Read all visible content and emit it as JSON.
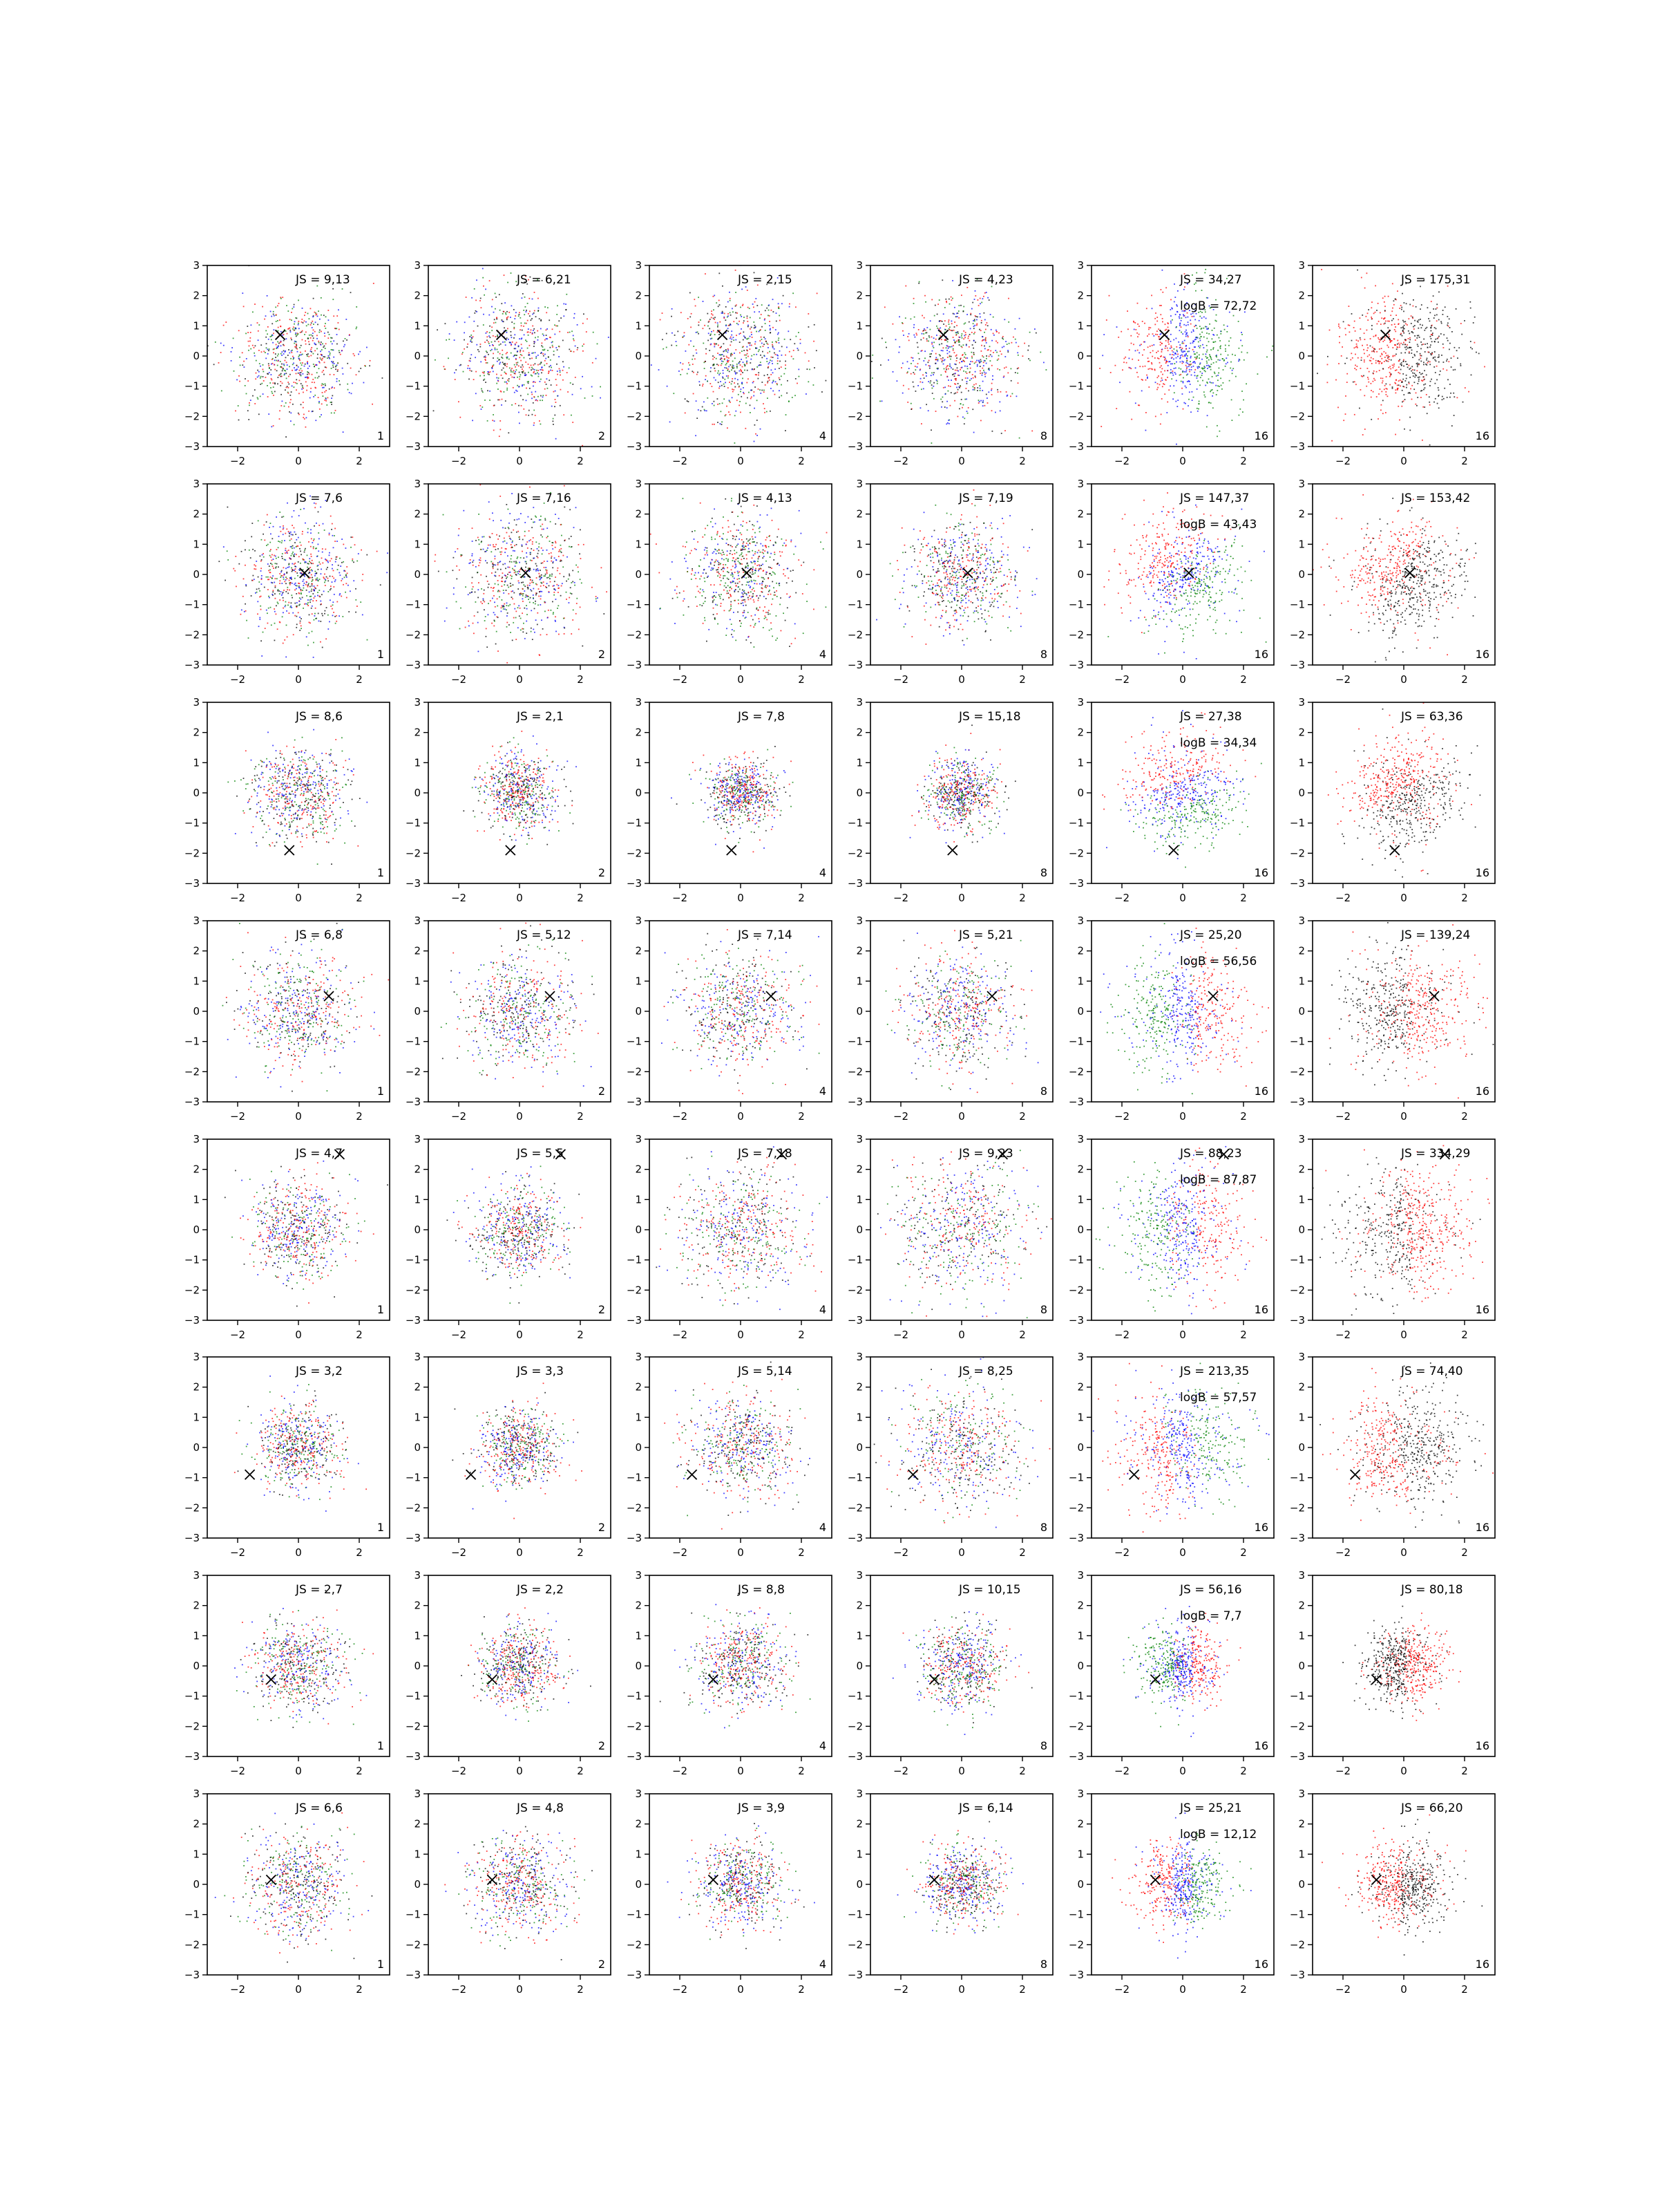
{
  "chart_data": {
    "type": "scatter",
    "grid": false,
    "legend": "none",
    "xlim": [
      -3,
      3
    ],
    "ylim": [
      -3,
      3
    ],
    "xticks": [
      -2,
      0,
      2
    ],
    "yticks": [
      -3,
      -2,
      -1,
      0,
      1,
      2,
      3
    ],
    "colors": {
      "red": "#ff0000",
      "green": "#008000",
      "blue": "#0000ff",
      "black": "#000000"
    },
    "marker": {
      "symbol": "×",
      "color": "#000000"
    },
    "rows": [
      {
        "marker_xy": [
          -0.6,
          0.7
        ],
        "panels": [
          {
            "js": "JS = 9,13",
            "logb": "",
            "n": "1",
            "mix": "uniform",
            "spread": 1.0
          },
          {
            "js": "JS = 6,21",
            "logb": "",
            "n": "2",
            "mix": "uniform",
            "spread": 1.05
          },
          {
            "js": "JS = 2,15",
            "logb": "",
            "n": "4",
            "mix": "uniform",
            "spread": 1.05
          },
          {
            "js": "JS = 4,23",
            "logb": "",
            "n": "8",
            "mix": "uniform",
            "spread": 1.0
          },
          {
            "js": "JS = 34,27",
            "logb": "logB = 72,72",
            "n": "16",
            "mix": "split3",
            "red_dir": [
              -1,
              0
            ],
            "spread": 1.0
          },
          {
            "js": "JS = 175,31",
            "logb": "",
            "n": "16",
            "mix": "split2",
            "red_dir": [
              -1,
              0
            ],
            "spread": 1.0
          }
        ]
      },
      {
        "marker_xy": [
          0.2,
          0.05
        ],
        "panels": [
          {
            "js": "JS = 7,6",
            "logb": "",
            "n": "1",
            "mix": "uniform",
            "spread": 0.95
          },
          {
            "js": "JS = 7,16",
            "logb": "",
            "n": "2",
            "mix": "uniform",
            "spread": 1.05
          },
          {
            "js": "JS = 4,13",
            "logb": "",
            "n": "4",
            "mix": "uniform",
            "spread": 0.95
          },
          {
            "js": "JS = 7,19",
            "logb": "",
            "n": "8",
            "mix": "uniform",
            "spread": 0.9
          },
          {
            "js": "JS = 147,37",
            "logb": "logB = 43,43",
            "n": "16",
            "mix": "split3",
            "red_dir": [
              -0.7,
              0.7
            ],
            "spread": 0.95
          },
          {
            "js": "JS = 153,42",
            "logb": "",
            "n": "16",
            "mix": "split2",
            "red_dir": [
              -0.7,
              0.5
            ],
            "spread": 0.95
          }
        ]
      },
      {
        "marker_xy": [
          -0.3,
          -1.9
        ],
        "panels": [
          {
            "js": "JS = 8,6",
            "logb": "",
            "n": "1",
            "mix": "uniform",
            "spread": 0.8
          },
          {
            "js": "JS = 2,1",
            "logb": "",
            "n": "2",
            "mix": "uniform",
            "spread": 0.65
          },
          {
            "js": "JS = 7,8",
            "logb": "",
            "n": "4",
            "mix": "uniform",
            "spread": 0.55
          },
          {
            "js": "JS = 15,18",
            "logb": "",
            "n": "8",
            "mix": "uniform",
            "spread": 0.6
          },
          {
            "js": "JS = 27,38",
            "logb": "logB = 34,34",
            "n": "16",
            "mix": "split3",
            "red_dir": [
              -0.3,
              0.8
            ],
            "spread": 0.9
          },
          {
            "js": "JS = 63,36",
            "logb": "",
            "n": "16",
            "mix": "split2",
            "red_dir": [
              -0.4,
              0.6
            ],
            "spread": 0.85
          }
        ]
      },
      {
        "marker_xy": [
          1.0,
          0.5
        ],
        "panels": [
          {
            "js": "JS = 6,8",
            "logb": "",
            "n": "1",
            "mix": "uniform",
            "spread": 0.9
          },
          {
            "js": "JS = 5,12",
            "logb": "",
            "n": "2",
            "mix": "uniform",
            "spread": 0.95
          },
          {
            "js": "JS = 7,14",
            "logb": "",
            "n": "4",
            "mix": "uniform",
            "spread": 0.95
          },
          {
            "js": "JS = 5,21",
            "logb": "",
            "n": "8",
            "mix": "uniform",
            "spread": 0.95
          },
          {
            "js": "JS = 25,20",
            "logb": "logB = 56,56",
            "n": "16",
            "mix": "split3",
            "red_dir": [
              1,
              0
            ],
            "spread": 1.0
          },
          {
            "js": "JS = 139,24",
            "logb": "",
            "n": "16",
            "mix": "split2",
            "red_dir": [
              1,
              0
            ],
            "spread": 1.0
          }
        ]
      },
      {
        "marker_xy": [
          1.35,
          2.5
        ],
        "panels": [
          {
            "js": "JS = 4,7",
            "logb": "",
            "n": "1",
            "mix": "uniform",
            "spread": 0.8
          },
          {
            "js": "JS = 5,5",
            "logb": "",
            "n": "2",
            "mix": "uniform",
            "spread": 0.75
          },
          {
            "js": "JS = 7,18",
            "logb": "",
            "n": "4",
            "mix": "uniform",
            "spread": 1.05
          },
          {
            "js": "JS = 9,23",
            "logb": "",
            "n": "8",
            "mix": "uniform",
            "spread": 1.1
          },
          {
            "js": "JS = 88,23",
            "logb": "logB = 87,87",
            "n": "16",
            "mix": "split3",
            "red_dir": [
              1,
              0.1
            ],
            "spread": 1.05
          },
          {
            "js": "JS = 334,29",
            "logb": "",
            "n": "16",
            "mix": "split2",
            "red_dir": [
              1,
              0.1
            ],
            "spread": 1.05
          }
        ]
      },
      {
        "marker_xy": [
          -1.6,
          -0.9
        ],
        "panels": [
          {
            "js": "JS = 3,2",
            "logb": "",
            "n": "1",
            "mix": "uniform",
            "spread": 0.7
          },
          {
            "js": "JS = 3,3",
            "logb": "",
            "n": "2",
            "mix": "uniform",
            "spread": 0.65
          },
          {
            "js": "JS = 5,14",
            "logb": "",
            "n": "4",
            "mix": "uniform",
            "spread": 0.85
          },
          {
            "js": "JS = 8,25",
            "logb": "",
            "n": "8",
            "mix": "uniform",
            "spread": 1.0
          },
          {
            "js": "JS = 213,35",
            "logb": "logB = 57,57",
            "n": "16",
            "mix": "split3",
            "red_dir": [
              -1,
              -0.2
            ],
            "spread": 1.0
          },
          {
            "js": "JS = 74,40",
            "logb": "",
            "n": "16",
            "mix": "split2",
            "red_dir": [
              -1,
              -0.2
            ],
            "spread": 1.0
          }
        ]
      },
      {
        "marker_xy": [
          -0.9,
          -0.45
        ],
        "panels": [
          {
            "js": "JS = 2,7",
            "logb": "",
            "n": "1",
            "mix": "uniform",
            "spread": 0.75
          },
          {
            "js": "JS = 2,2",
            "logb": "",
            "n": "2",
            "mix": "uniform",
            "spread": 0.65
          },
          {
            "js": "JS = 8,8",
            "logb": "",
            "n": "4",
            "mix": "uniform",
            "spread": 0.75
          },
          {
            "js": "JS = 10,15",
            "logb": "",
            "n": "8",
            "mix": "uniform",
            "spread": 0.7
          },
          {
            "js": "JS = 56,16",
            "logb": "logB = 7,7",
            "n": "16",
            "mix": "split3",
            "red_dir": [
              0.8,
              0
            ],
            "spread": 0.65
          },
          {
            "js": "JS = 80,18",
            "logb": "",
            "n": "16",
            "mix": "split2",
            "red_dir": [
              0.7,
              0
            ],
            "spread": 0.65
          }
        ]
      },
      {
        "marker_xy": [
          -0.9,
          0.15
        ],
        "panels": [
          {
            "js": "JS = 6,6",
            "logb": "",
            "n": "1",
            "mix": "uniform",
            "spread": 0.85
          },
          {
            "js": "JS = 4,8",
            "logb": "",
            "n": "2",
            "mix": "uniform",
            "spread": 0.8
          },
          {
            "js": "JS = 3,9",
            "logb": "",
            "n": "4",
            "mix": "uniform",
            "spread": 0.7
          },
          {
            "js": "JS = 6,14",
            "logb": "",
            "n": "8",
            "mix": "uniform",
            "spread": 0.65
          },
          {
            "js": "JS = 25,21",
            "logb": "logB = 12,12",
            "n": "16",
            "mix": "split3",
            "red_dir": [
              -0.8,
              0
            ],
            "spread": 0.7
          },
          {
            "js": "JS = 66,20",
            "logb": "",
            "n": "16",
            "mix": "split2",
            "red_dir": [
              -0.7,
              0
            ],
            "spread": 0.7
          }
        ]
      }
    ]
  }
}
